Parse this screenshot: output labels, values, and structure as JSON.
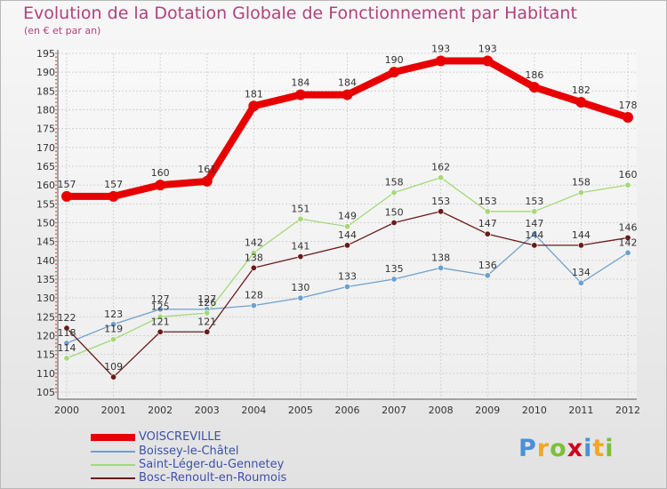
{
  "chart_data": {
    "type": "line",
    "title": "Evolution de la Dotation Globale de Fonctionnement par Habitant",
    "subtitle": "(en € et par an)",
    "xlabel": "",
    "ylabel": "",
    "x": [
      "2000",
      "2001",
      "2002",
      "2003",
      "2004",
      "2005",
      "2006",
      "2007",
      "2008",
      "2009",
      "2010",
      "2011",
      "2012"
    ],
    "ylim": [
      105,
      195
    ],
    "yticks": [
      105,
      110,
      115,
      120,
      125,
      130,
      135,
      140,
      145,
      150,
      155,
      160,
      165,
      170,
      175,
      180,
      185,
      190,
      195
    ],
    "grid": true,
    "series": [
      {
        "name": "VOISCREVILLE",
        "color": "#e80000",
        "values": [
          157,
          157,
          160,
          161,
          181,
          184,
          184,
          190,
          193,
          193,
          186,
          182,
          178
        ]
      },
      {
        "name": "Boissey-le-Châtel",
        "color": "#6fa0cc",
        "values": [
          118,
          123,
          127,
          127,
          128,
          130,
          133,
          135,
          138,
          136,
          147,
          134,
          142
        ]
      },
      {
        "name": "Saint-Léger-du-Gennetey",
        "color": "#a3d977",
        "values": [
          114,
          119,
          125,
          126,
          142,
          151,
          149,
          158,
          162,
          153,
          153,
          158,
          160
        ]
      },
      {
        "name": "Bosc-Renoult-en-Roumois",
        "color": "#6b1a1a",
        "values": [
          122,
          109,
          121,
          121,
          138,
          141,
          144,
          150,
          153,
          147,
          144,
          144,
          146
        ]
      }
    ]
  },
  "logo": {
    "letters": [
      "P",
      "r",
      "o",
      "x",
      "i",
      "t",
      "i"
    ],
    "colors": [
      "#4a90d9",
      "#f5a623",
      "#7cbf3a",
      "#d0021b",
      "#4a90d9",
      "#f5a623",
      "#7cbf3a"
    ]
  }
}
